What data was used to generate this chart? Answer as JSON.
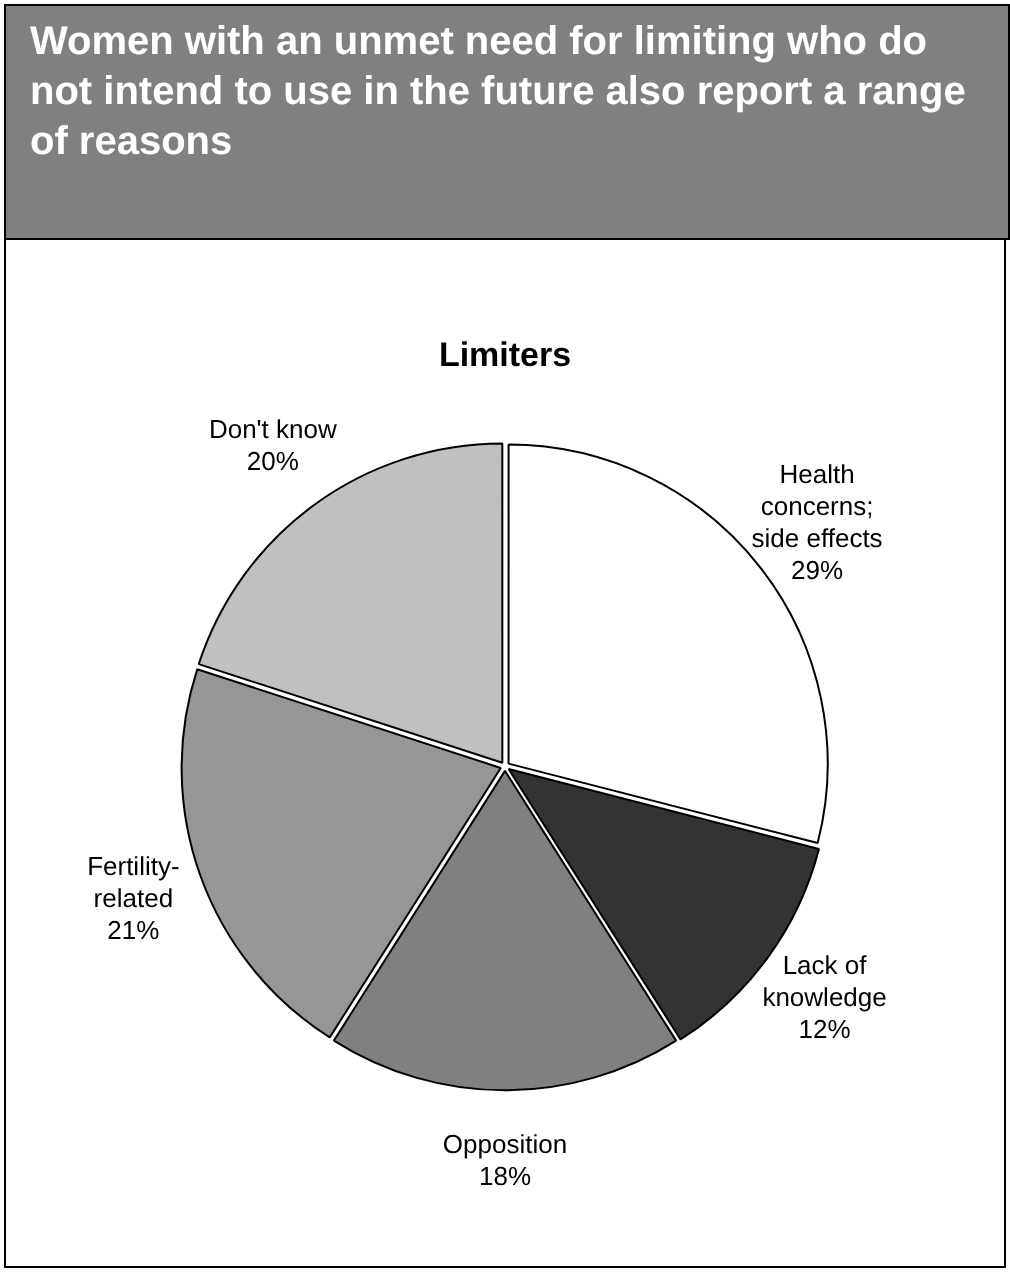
{
  "chart_data": {
    "type": "pie",
    "title": "Limiters",
    "annotations": [
      "Women with an unmet need for limiting who do not intend to use in the future also report a range of reasons"
    ],
    "categories": [
      "Health concerns; side effects",
      "Lack of knowledge",
      "Opposition",
      "Fertility-related",
      "Don't know"
    ],
    "values": [
      29,
      12,
      18,
      21,
      20
    ],
    "value_labels": [
      "29%",
      "12%",
      "18%",
      "21%",
      "20%"
    ],
    "colors": [
      "#ffffff",
      "#333333",
      "#808080",
      "#969696",
      "#c0c0c0"
    ],
    "legend": false
  }
}
